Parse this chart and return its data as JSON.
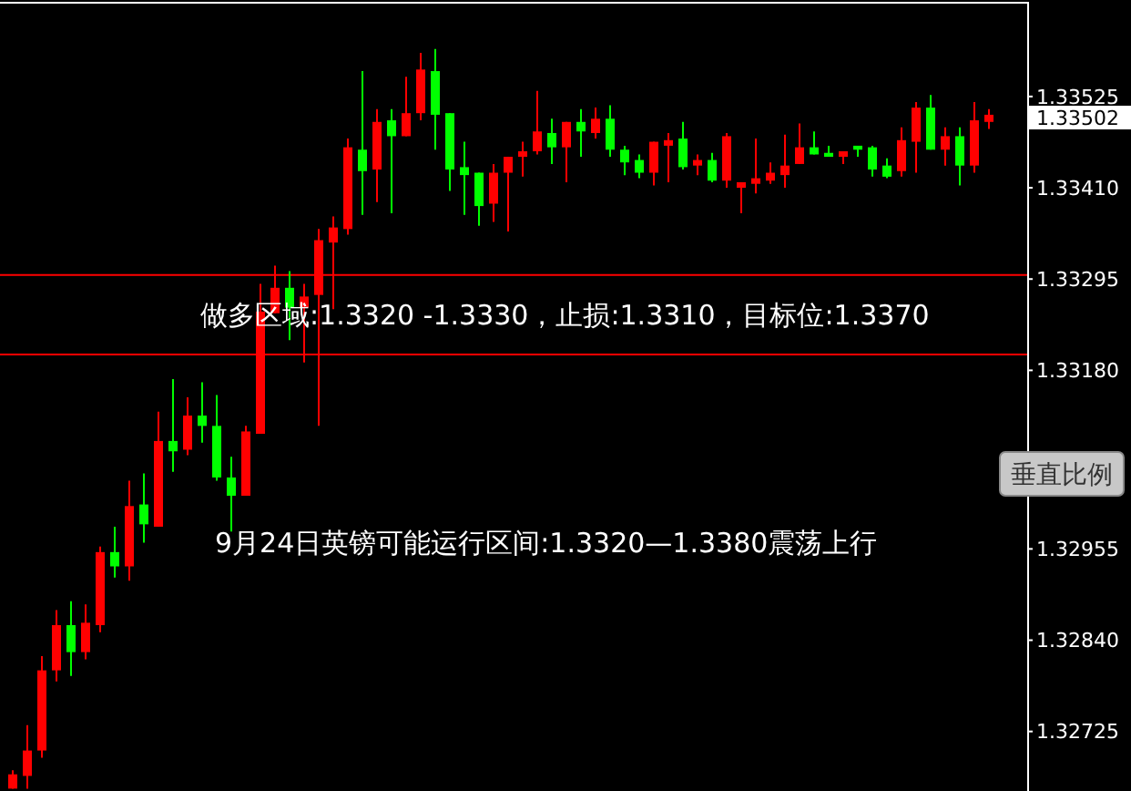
{
  "chart_data": {
    "type": "candlestick",
    "categories": [
      null,
      null,
      null,
      null,
      null,
      null,
      null,
      null,
      null,
      null,
      null,
      null,
      null,
      null,
      null,
      null,
      null,
      null,
      null,
      null,
      null,
      null,
      null,
      null,
      null,
      null,
      null,
      null,
      null,
      null,
      null,
      null,
      null,
      null,
      null,
      null,
      null,
      null,
      null,
      null,
      null,
      null,
      null,
      null,
      null,
      null,
      null,
      null,
      null,
      null,
      null,
      null,
      null,
      null,
      null,
      null,
      null,
      null,
      null,
      null,
      null,
      null,
      null,
      null,
      null,
      null,
      null,
      null
    ],
    "ohlc": [
      [
        1.32653,
        1.32676,
        1.32653,
        1.32671
      ],
      [
        1.32669,
        1.32733,
        1.32653,
        1.32701
      ],
      [
        1.32701,
        1.3282,
        1.32692,
        1.32802
      ],
      [
        1.32802,
        1.32878,
        1.32788,
        1.32859
      ],
      [
        1.32859,
        1.32889,
        1.32795,
        1.32825
      ],
      [
        1.32825,
        1.32885,
        1.32816,
        1.32862
      ],
      [
        1.32859,
        1.32958,
        1.3285,
        1.32951
      ],
      [
        1.32951,
        1.32983,
        1.32919,
        1.32933
      ],
      [
        1.32933,
        1.33041,
        1.32915,
        1.33009
      ],
      [
        1.33011,
        1.3305,
        1.32963,
        1.32986
      ],
      [
        1.32983,
        1.33128,
        1.32983,
        1.33091
      ],
      [
        1.33091,
        1.33169,
        1.33052,
        1.33078
      ],
      [
        1.3308,
        1.33146,
        1.33073,
        1.33123
      ],
      [
        1.33123,
        1.33165,
        1.33089,
        1.3311
      ],
      [
        1.3311,
        1.33149,
        1.33041,
        1.33045
      ],
      [
        1.33045,
        1.33071,
        1.32977,
        1.33022
      ],
      [
        1.33022,
        1.3311,
        1.33022,
        1.33103
      ],
      [
        1.331,
        1.33289,
        1.331,
        1.33254
      ],
      [
        1.33252,
        1.33312,
        1.33252,
        1.33284
      ],
      [
        1.33284,
        1.33305,
        1.33218,
        1.33259
      ],
      [
        1.33259,
        1.33289,
        1.3319,
        1.33273
      ],
      [
        1.33275,
        1.33358,
        1.3311,
        1.33344
      ],
      [
        1.33341,
        1.33374,
        1.33257,
        1.3336
      ],
      [
        1.33358,
        1.33472,
        1.33351,
        1.33461
      ],
      [
        1.33458,
        1.33557,
        1.33376,
        1.33431
      ],
      [
        1.33433,
        1.33509,
        1.33392,
        1.33493
      ],
      [
        1.33495,
        1.33509,
        1.33378,
        1.33475
      ],
      [
        1.33475,
        1.3355,
        1.33475,
        1.33504
      ],
      [
        1.33504,
        1.3358,
        1.33495,
        1.33559
      ],
      [
        1.33557,
        1.33585,
        1.33458,
        1.33502
      ],
      [
        1.33504,
        1.33504,
        1.33406,
        1.33433
      ],
      [
        1.33436,
        1.33468,
        1.33376,
        1.33426
      ],
      [
        1.33429,
        1.33429,
        1.33362,
        1.33387
      ],
      [
        1.3339,
        1.3344,
        1.33367,
        1.33429
      ],
      [
        1.33429,
        1.33449,
        1.33355,
        1.33449
      ],
      [
        1.33449,
        1.33468,
        1.33424,
        1.33456
      ],
      [
        1.33456,
        1.33532,
        1.33452,
        1.33481
      ],
      [
        1.33479,
        1.33497,
        1.3344,
        1.33461
      ],
      [
        1.33461,
        1.33493,
        1.33417,
        1.33493
      ],
      [
        1.33493,
        1.33509,
        1.33449,
        1.33481
      ],
      [
        1.33479,
        1.33511,
        1.33472,
        1.33497
      ],
      [
        1.33497,
        1.33514,
        1.33449,
        1.33458
      ],
      [
        1.33458,
        1.33463,
        1.33426,
        1.33442
      ],
      [
        1.33445,
        1.33452,
        1.33422,
        1.33429
      ],
      [
        1.33429,
        1.33468,
        1.33413,
        1.33468
      ],
      [
        1.33463,
        1.33479,
        1.33417,
        1.3347
      ],
      [
        1.33472,
        1.33493,
        1.33433,
        1.33436
      ],
      [
        1.33438,
        1.33452,
        1.33426,
        1.33445
      ],
      [
        1.33445,
        1.33454,
        1.33417,
        1.33419
      ],
      [
        1.33419,
        1.33479,
        1.3341,
        1.33475
      ],
      [
        1.3341,
        1.33417,
        1.33378,
        1.33417
      ],
      [
        1.33415,
        1.33472,
        1.33403,
        1.33422
      ],
      [
        1.33419,
        1.33442,
        1.33415,
        1.33429
      ],
      [
        1.33426,
        1.33477,
        1.3341,
        1.33438
      ],
      [
        1.3344,
        1.33491,
        1.3344,
        1.33461
      ],
      [
        1.33461,
        1.33481,
        1.33452,
        1.33452
      ],
      [
        1.33454,
        1.33463,
        1.33449,
        1.33449
      ],
      [
        1.33449,
        1.33456,
        1.3344,
        1.33456
      ],
      [
        1.33463,
        1.33463,
        1.33449,
        1.33458
      ],
      [
        1.33461,
        1.33463,
        1.33424,
        1.33433
      ],
      [
        1.33438,
        1.33447,
        1.33422,
        1.33424
      ],
      [
        1.33431,
        1.33486,
        1.33424,
        1.3347
      ],
      [
        1.33468,
        1.33518,
        1.33429,
        1.33511
      ],
      [
        1.33511,
        1.33527,
        1.33458,
        1.33458
      ],
      [
        1.33458,
        1.33486,
        1.33438,
        1.33475
      ],
      [
        1.33475,
        1.33486,
        1.33413,
        1.33438
      ],
      [
        1.33438,
        1.33518,
        1.33429,
        1.33495
      ],
      [
        1.33493,
        1.33509,
        1.33484,
        1.33502
      ]
    ],
    "colors": [
      "#ff0000",
      "#ff0000",
      "#ff0000",
      "#ff0000",
      "#00ff00",
      "#ff0000",
      "#ff0000",
      "#00ff00",
      "#ff0000",
      "#00ff00",
      "#ff0000",
      "#00ff00",
      "#ff0000",
      "#00ff00",
      "#00ff00",
      "#00ff00",
      "#ff0000",
      "#ff0000",
      "#ff0000",
      "#00ff00",
      "#ff0000",
      "#ff0000",
      "#ff0000",
      "#ff0000",
      "#00ff00",
      "#ff0000",
      "#00ff00",
      "#ff0000",
      "#ff0000",
      "#00ff00",
      "#00ff00",
      "#00ff00",
      "#00ff00",
      "#ff0000",
      "#ff0000",
      "#ff0000",
      "#ff0000",
      "#00ff00",
      "#ff0000",
      "#00ff00",
      "#ff0000",
      "#00ff00",
      "#00ff00",
      "#00ff00",
      "#ff0000",
      "#ff0000",
      "#00ff00",
      "#ff0000",
      "#00ff00",
      "#ff0000",
      "#ff0000",
      "#ff0000",
      "#ff0000",
      "#ff0000",
      "#ff0000",
      "#00ff00",
      "#00ff00",
      "#ff0000",
      "#00ff00",
      "#00ff00",
      "#00ff00",
      "#ff0000",
      "#ff0000",
      "#00ff00",
      "#ff0000",
      "#00ff00",
      "#ff0000",
      "#ff0000"
    ],
    "ylim": [
      1.3265,
      1.33642
    ],
    "yticks": [
      1.33525,
      {
        "value": 1.3341,
        "label": "1.33410"
      },
      1.33295,
      {
        "value": 1.3318,
        "label": "1.33180"
      },
      1.32955,
      {
        "value": 1.3284,
        "label": "1.32840"
      },
      1.32725
    ],
    "grid": false,
    "ref_lines": [
      {
        "axis": "y",
        "value": 1.333,
        "color": "#ff0000"
      },
      {
        "axis": "y",
        "value": 1.332,
        "color": "#ff0000"
      }
    ],
    "annotations": [
      "做多区域:1.3320 -1.3330，止损:1.3310，目标位:1.3370",
      "9月24日英镑可能运行区间:1.3320—1.3380震荡上行",
      "1.33502",
      "垂直比例"
    ]
  }
}
